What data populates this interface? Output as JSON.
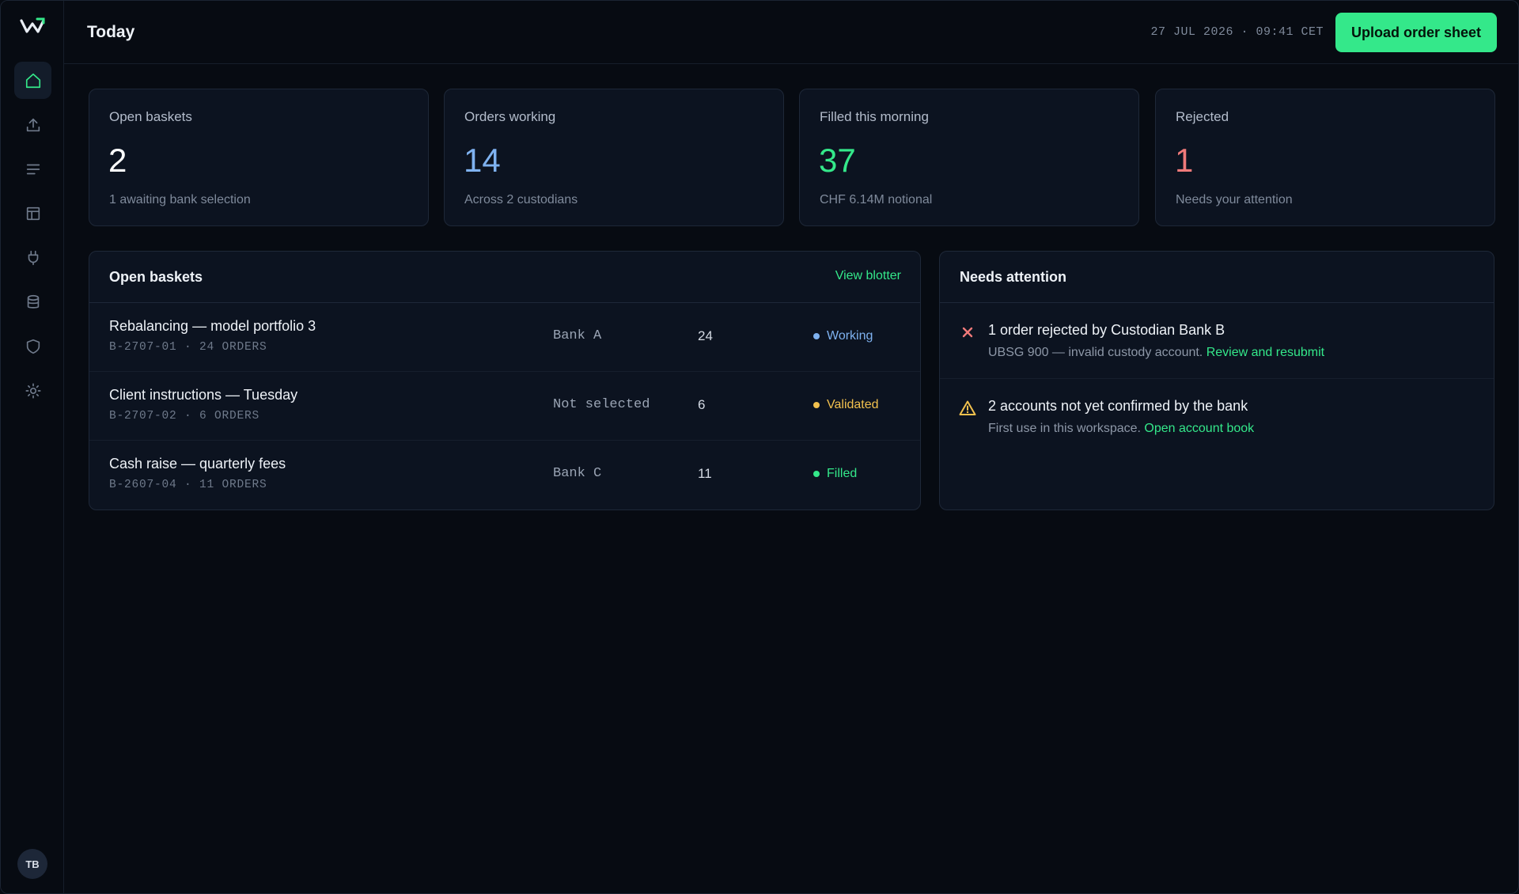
{
  "header": {
    "title": "Today",
    "datetime": "27 JUL 2026 · 09:41 CET",
    "upload_label": "Upload order sheet"
  },
  "sidebar": {
    "items": [
      {
        "name": "home-icon",
        "active": true
      },
      {
        "name": "upload-icon",
        "active": false
      },
      {
        "name": "list-icon",
        "active": false
      },
      {
        "name": "layout-icon",
        "active": false
      },
      {
        "name": "plug-icon",
        "active": false
      },
      {
        "name": "database-icon",
        "active": false
      },
      {
        "name": "shield-icon",
        "active": false
      },
      {
        "name": "settings-icon",
        "active": false
      }
    ],
    "avatar": "TB"
  },
  "stats": [
    {
      "label": "Open baskets",
      "value": "2",
      "sub": "1 awaiting bank selection",
      "color": "#ffffff"
    },
    {
      "label": "Orders working",
      "value": "14",
      "sub": "Across 2 custodians",
      "color": "#7fb2f0"
    },
    {
      "label": "Filled this morning",
      "value": "37",
      "sub": "CHF 6.14M notional",
      "color": "#34e88a"
    },
    {
      "label": "Rejected",
      "value": "1",
      "sub": "Needs your attention",
      "color": "#f07a7a"
    }
  ],
  "baskets": {
    "title": "Open baskets",
    "link": "View blotter",
    "rows": [
      {
        "name": "Rebalancing — model portfolio 3",
        "id": "B-2707-01 · 24 ORDERS",
        "bank": "Bank A",
        "count": "24",
        "status": "Working",
        "status_color": "#7fb2f0"
      },
      {
        "name": "Client instructions — Tuesday",
        "id": "B-2707-02 · 6 ORDERS",
        "bank": "Not selected",
        "count": "6",
        "status": "Validated",
        "status_color": "#f2c14e"
      },
      {
        "name": "Cash raise — quarterly fees",
        "id": "B-2607-04 · 11 ORDERS",
        "bank": "Bank C",
        "count": "11",
        "status": "Filled",
        "status_color": "#34e88a"
      }
    ]
  },
  "attention": {
    "title": "Needs attention",
    "items": [
      {
        "icon": "close-icon",
        "title": "1 order rejected by Custodian Bank B",
        "desc": "UBSG 900 — invalid custody account.",
        "link": "Review and resubmit"
      },
      {
        "icon": "warning-icon",
        "title": "2 accounts not yet confirmed by the bank",
        "desc": "First use in this workspace.",
        "link": "Open account book"
      }
    ]
  },
  "colors": {
    "accent": "#34e88a",
    "background": "#070b12",
    "card": "#0c1320"
  }
}
